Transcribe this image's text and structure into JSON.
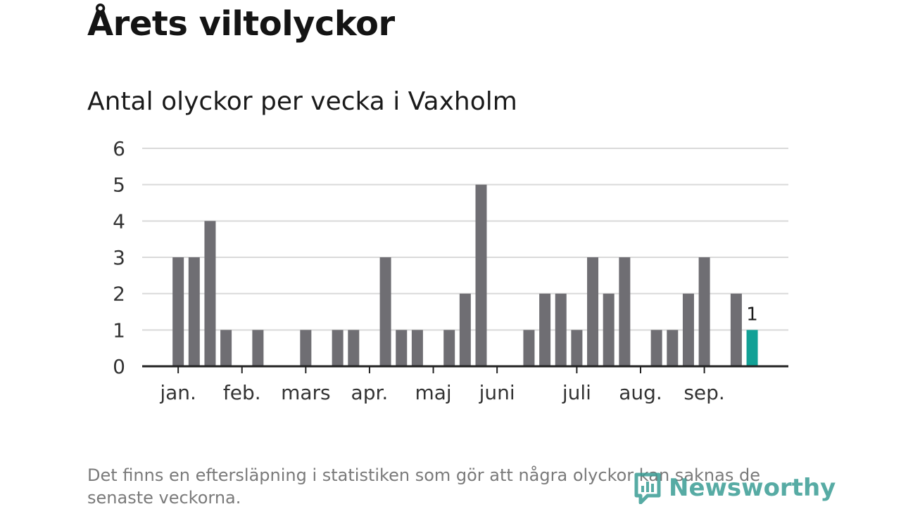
{
  "title": "Årets viltolyckor",
  "subtitle": "Antal olyckor per vecka i Vaxholm",
  "footnote": "Det finns en eftersläpning i statistiken som gör att några olyckor kan saknas de senaste veckorna.",
  "logo": {
    "text": "Newsworthy",
    "icon": "newsworthy-chart-logo-icon"
  },
  "colors": {
    "bar": "#6f6e73",
    "highlight": "#12a196",
    "grid": "#d9d9d9",
    "axis": "#222222",
    "label": "#333333"
  },
  "chart_data": {
    "type": "bar",
    "title": "Antal olyckor per vecka i Vaxholm",
    "xlabel": "",
    "ylabel": "",
    "ylim": [
      0,
      6
    ],
    "yticks": [
      0,
      1,
      2,
      3,
      4,
      5,
      6
    ],
    "grid": true,
    "weeks": [
      1,
      2,
      3,
      4,
      5,
      6,
      7,
      8,
      9,
      10,
      11,
      12,
      13,
      14,
      15,
      16,
      17,
      18,
      19,
      20,
      21,
      22,
      23,
      24,
      25,
      26,
      27,
      28,
      29,
      30,
      31,
      32,
      33,
      34,
      35,
      36,
      37,
      38,
      39
    ],
    "values": [
      0,
      3,
      3,
      4,
      1,
      0,
      1,
      0,
      0,
      1,
      0,
      1,
      1,
      0,
      3,
      1,
      1,
      0,
      1,
      2,
      5,
      0,
      0,
      1,
      2,
      2,
      1,
      3,
      2,
      3,
      0,
      1,
      1,
      2,
      3,
      0,
      2,
      1,
      0
    ],
    "highlight_index": 37,
    "highlight_label": "1",
    "month_labels": [
      {
        "label": "jan.",
        "week": 2
      },
      {
        "label": "feb.",
        "week": 6
      },
      {
        "label": "mars",
        "week": 10
      },
      {
        "label": "apr.",
        "week": 14
      },
      {
        "label": "maj",
        "week": 18
      },
      {
        "label": "juni",
        "week": 22
      },
      {
        "label": "juli",
        "week": 27
      },
      {
        "label": "aug.",
        "week": 31
      },
      {
        "label": "sep.",
        "week": 35
      }
    ]
  }
}
